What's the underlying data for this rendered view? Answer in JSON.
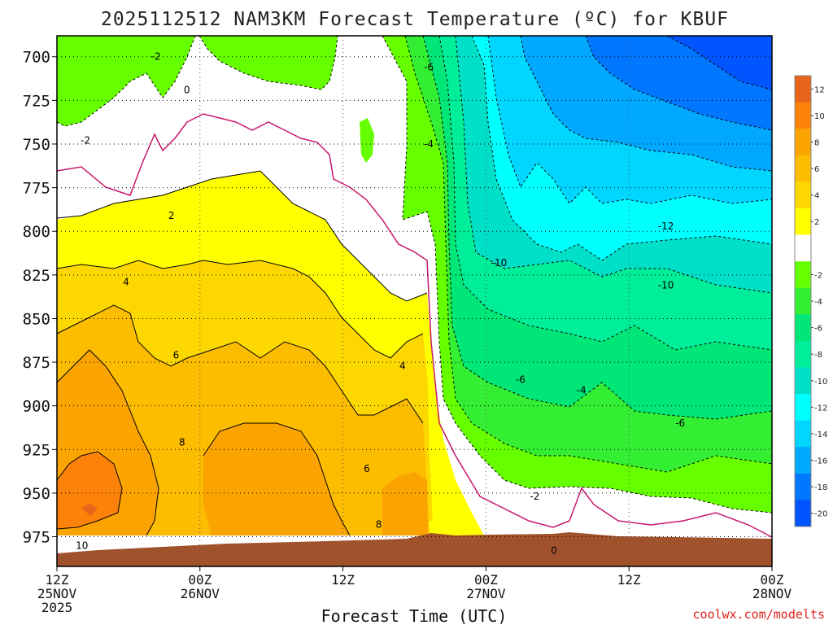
{
  "chart_data": {
    "type": "heatmap",
    "title": "2025112512 NAM3KM Forecast Temperature (ºC) for KBUF",
    "xlabel": "Forecast Time (UTC)",
    "ylabel": "",
    "credit": "coolwx.com/modelts",
    "x_ticks": [
      {
        "hours": 0,
        "lines": [
          "12Z",
          "25NOV",
          "2025"
        ]
      },
      {
        "hours": 12,
        "lines": [
          "00Z",
          "26NOV"
        ]
      },
      {
        "hours": 24,
        "lines": [
          "12Z"
        ]
      },
      {
        "hours": 36,
        "lines": [
          "00Z",
          "27NOV"
        ]
      },
      {
        "hours": 48,
        "lines": [
          "12Z"
        ]
      },
      {
        "hours": 60,
        "lines": [
          "00Z",
          "28NOV"
        ]
      }
    ],
    "xlim_hours": [
      0,
      60
    ],
    "y_ticks": [
      700,
      725,
      750,
      775,
      800,
      825,
      850,
      875,
      900,
      925,
      950,
      975
    ],
    "ylim": [
      688,
      992
    ],
    "y_reversed": true,
    "grid": true,
    "colorbar": {
      "labels": [
        "12",
        "10",
        "8",
        "6",
        "4",
        "2",
        "-2",
        "-4",
        "-6",
        "-8",
        "-10",
        "-12",
        "-14",
        "-16",
        "-18",
        "-20"
      ],
      "bins": [
        {
          "range": "12 to 14",
          "color": "#e8641b"
        },
        {
          "range": "10 to 12",
          "color": "#fc820a"
        },
        {
          "range": "8 to 10",
          "color": "#fba300"
        },
        {
          "range": "6 to 8",
          "color": "#fcbc00"
        },
        {
          "range": "4 to 6",
          "color": "#fdd800"
        },
        {
          "range": "2 to 4",
          "color": "#ffff00"
        },
        {
          "range": "-2 to 2",
          "color": "#ffffff"
        },
        {
          "range": "-4 to -2",
          "color": "#66ff00"
        },
        {
          "range": "-6 to -4",
          "color": "#33ee33"
        },
        {
          "range": "-8 to -6",
          "color": "#00e677"
        },
        {
          "range": "-10 to -8",
          "color": "#00ee99"
        },
        {
          "range": "-12 to -10",
          "color": "#00e0c8"
        },
        {
          "range": "-14 to -12",
          "color": "#00ffff"
        },
        {
          "range": "-16 to -14",
          "color": "#00d6ff"
        },
        {
          "range": "-18 to -16",
          "color": "#00a8ff"
        },
        {
          "range": "-20 to -18",
          "color": "#0077ff"
        },
        {
          "range": "-22 to -20",
          "color": "#0055ff"
        }
      ]
    },
    "ground_color": "#a0522d",
    "zero_contour_color": "#c8186e",
    "contour_labels": [
      {
        "text": "-2",
        "hours": 8.3,
        "p": 700
      },
      {
        "text": "0",
        "hours": 10.9,
        "p": 719
      },
      {
        "text": "-2",
        "hours": 2.4,
        "p": 748
      },
      {
        "text": "2",
        "hours": 9.6,
        "p": 791
      },
      {
        "text": "4",
        "hours": 5.8,
        "p": 829
      },
      {
        "text": "6",
        "hours": 10.0,
        "p": 871
      },
      {
        "text": "8",
        "hours": 10.5,
        "p": 921
      },
      {
        "text": "6",
        "hours": 26.0,
        "p": 936
      },
      {
        "text": "8",
        "hours": 27.0,
        "p": 968
      },
      {
        "text": "10",
        "hours": 2.1,
        "p": 980
      },
      {
        "text": "4",
        "hours": 29.0,
        "p": 877
      },
      {
        "text": "-6",
        "hours": 31.2,
        "p": 706
      },
      {
        "text": "-4",
        "hours": 31.2,
        "p": 750
      },
      {
        "text": "-10",
        "hours": 37.1,
        "p": 818
      },
      {
        "text": "-12",
        "hours": 51.1,
        "p": 797
      },
      {
        "text": "-10",
        "hours": 51.1,
        "p": 831
      },
      {
        "text": "-6",
        "hours": 38.9,
        "p": 885
      },
      {
        "text": "-4",
        "hours": 44.0,
        "p": 891
      },
      {
        "text": "-6",
        "hours": 52.3,
        "p": 910
      },
      {
        "text": "-2",
        "hours": 40.1,
        "p": 952
      },
      {
        "text": "0",
        "hours": 41.7,
        "p": 983
      }
    ]
  }
}
